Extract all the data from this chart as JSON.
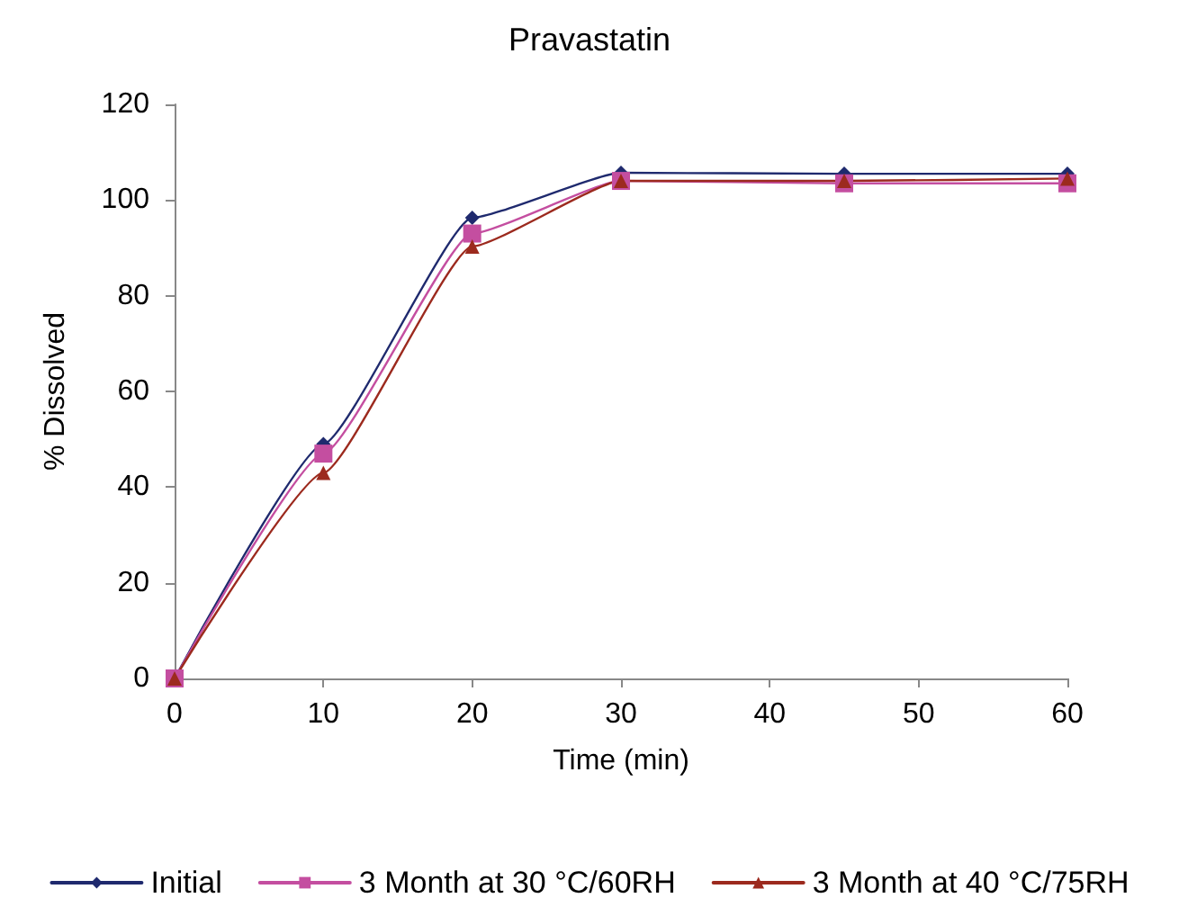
{
  "chart_data": {
    "type": "line",
    "title": "Pravastatin",
    "xlabel": "Time (min)",
    "ylabel": "% Dissolved",
    "x": [
      0,
      10,
      20,
      30,
      45,
      60
    ],
    "series": [
      {
        "name": "Initial",
        "color": "#1f2a6e",
        "marker": "diamond",
        "values": [
          0,
          49,
          96.3,
          105.7,
          105.5,
          105.5
        ]
      },
      {
        "name": "3 Month at 30 °C/60RH",
        "color": "#c44ea0",
        "marker": "square",
        "values": [
          0,
          47,
          93,
          104,
          103.5,
          103.5
        ]
      },
      {
        "name": "3 Month at 40 °C/75RH",
        "color": "#9c2a1e",
        "marker": "triangle",
        "values": [
          0,
          43,
          90.3,
          104,
          104,
          104.5
        ]
      }
    ],
    "xlim": [
      0,
      60
    ],
    "xticks": [
      0,
      10,
      20,
      30,
      40,
      50,
      60
    ],
    "ylim": [
      0,
      120
    ],
    "yticks": [
      0,
      20,
      40,
      60,
      80,
      100,
      120
    ],
    "grid": false,
    "legend": "bottom"
  }
}
